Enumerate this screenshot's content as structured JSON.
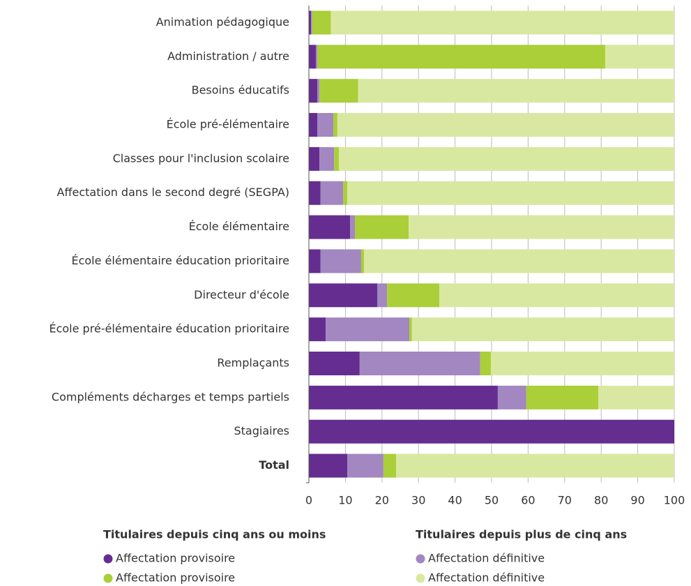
{
  "chart_data": {
    "type": "stacked-barh",
    "categories": [
      "Animation pédagogique",
      "Administration / autre",
      "Besoins éducatifs",
      "École pré-élémentaire",
      "Classes pour l'inclusion scolaire",
      "Affectation dans le second degré (SEGPA)",
      "École élémentaire",
      "École élémentaire éducation prioritaire",
      "Directeur d'école",
      "École pré-élémentaire éducation prioritaire",
      "Remplaçants",
      "Compléments décharges et temps partiels",
      "Stagiaires",
      "Total"
    ],
    "series": [
      {
        "name": "Affectation provisoire",
        "color": "#652d90",
        "values": [
          0.6,
          1.9,
          2.3,
          2.3,
          2.9,
          3.2,
          11.3,
          3.2,
          18.7,
          4.6,
          13.9,
          51.7,
          100,
          10.5
        ]
      },
      {
        "name": "Affectation définitive",
        "color": "#a287c1",
        "values": [
          0.3,
          0.4,
          0.6,
          4.4,
          4.0,
          6.2,
          1.3,
          11.1,
          2.7,
          22.9,
          33.0,
          7.8,
          0,
          9.9
        ]
      },
      {
        "name": "Affectation provisoire",
        "color": "#aacf39",
        "values": [
          5.1,
          78.8,
          10.6,
          1.1,
          1.3,
          1.1,
          14.7,
          0.8,
          14.3,
          0.7,
          2.9,
          19.7,
          0,
          3.5
        ]
      },
      {
        "name": "Affectation définitive",
        "color": "#d9e8a0",
        "values": [
          94.0,
          18.9,
          86.5,
          92.2,
          91.8,
          89.5,
          72.7,
          84.9,
          64.3,
          71.8,
          50.2,
          20.8,
          0,
          76.1
        ]
      }
    ],
    "legend_groups": [
      "Titulaires depuis cinq ans ou moins",
      "Titulaires depuis plus de cinq ans"
    ],
    "xlim": [
      0,
      100
    ],
    "xticks": [
      0,
      10,
      20,
      30,
      40,
      50,
      60,
      70,
      80,
      90,
      100
    ],
    "grid": true
  }
}
